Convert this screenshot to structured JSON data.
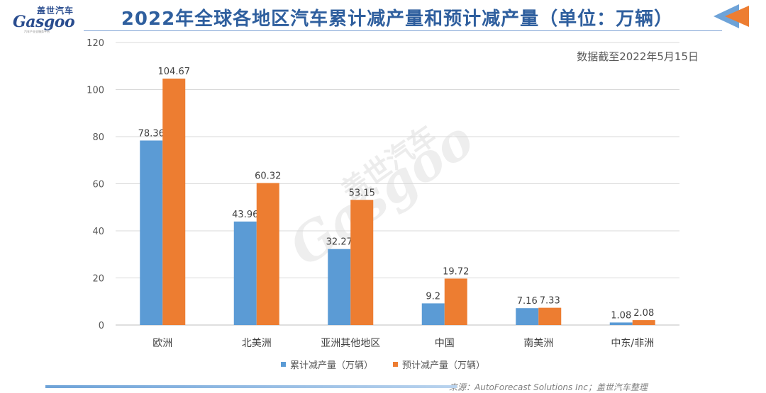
{
  "logo": {
    "cn": "盖世汽车",
    "en": "Gasgoo",
    "tagline": "汽车产业全服务平台"
  },
  "title": "2022年全球各地区汽车累计减产量和预计减产量（单位：万辆）",
  "date_note": "数据截至2022年5月15日",
  "source": "来源：AutoForecast Solutions Inc；盖世汽车整理",
  "watermark": {
    "en": "Gasgoo",
    "cn": "盖世汽车"
  },
  "colors": {
    "series1": "#5b9bd5",
    "series2": "#ed7d31",
    "title": "#2f5f9e",
    "grid": "#d9d9d9"
  },
  "chart_data": {
    "type": "bar",
    "categories": [
      "欧洲",
      "北美洲",
      "亚洲其他地区",
      "中国",
      "南美洲",
      "中东/非洲"
    ],
    "series": [
      {
        "name": "累计减产量（万辆）",
        "values": [
          78.36,
          43.96,
          32.27,
          9.2,
          7.16,
          1.08
        ]
      },
      {
        "name": "预计减产量（万辆）",
        "values": [
          104.67,
          60.32,
          53.15,
          19.72,
          7.33,
          2.08
        ]
      }
    ],
    "yticks": [
      "0",
      "20",
      "40",
      "60",
      "80",
      "100",
      "120"
    ],
    "ylim": [
      0,
      120
    ],
    "grid": true,
    "legend_position": "bottom"
  }
}
